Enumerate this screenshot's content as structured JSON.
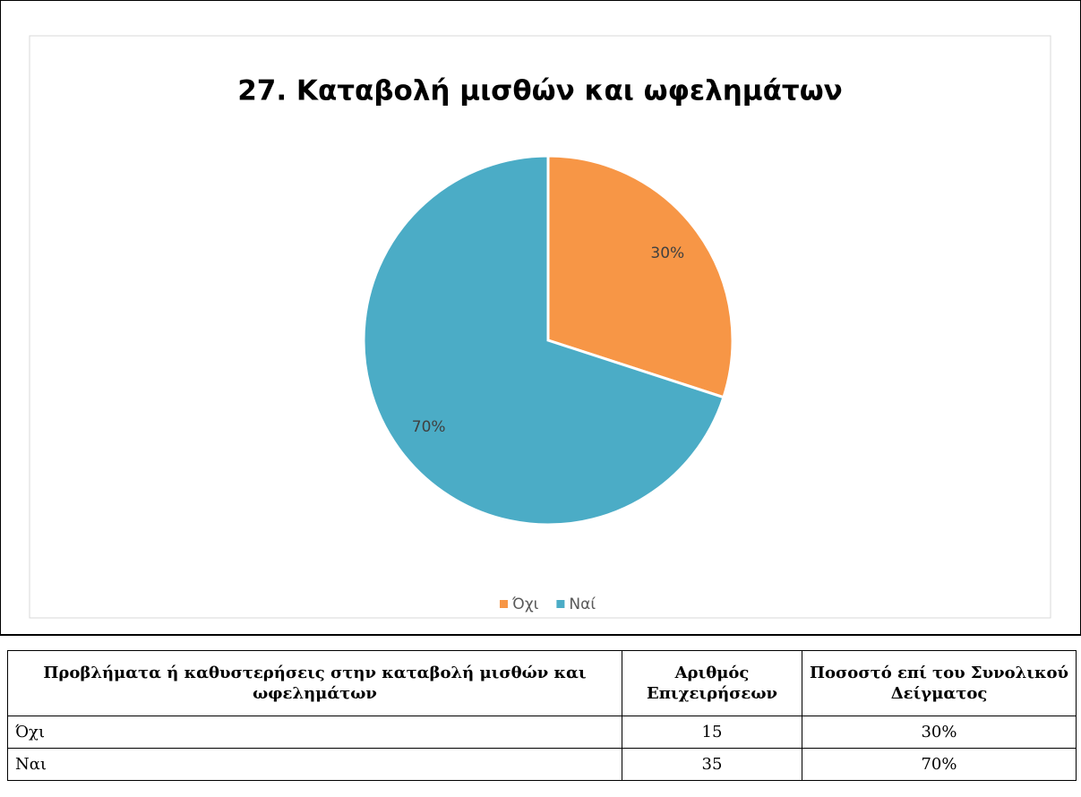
{
  "chart_data": {
    "type": "pie",
    "title": "27. Καταβολή μισθών και ωφελημάτων",
    "categories": [
      "Όχι",
      "Ναί"
    ],
    "values": [
      30,
      70
    ],
    "value_labels": [
      "30%",
      "70%"
    ],
    "colors": [
      "#f79646",
      "#4bacc6"
    ],
    "legend": "bottom"
  },
  "table": {
    "header": [
      "Προβλήματα ή καθυστερήσεις στην καταβολή μισθών και ωφελημάτων",
      "Αριθμός Επιχειρήσεων",
      "Ποσοστό επί του Συνολικού Δείγματος"
    ],
    "rows": [
      [
        "Όχι",
        "15",
        "30%"
      ],
      [
        "Ναι",
        "35",
        "70%"
      ]
    ]
  }
}
